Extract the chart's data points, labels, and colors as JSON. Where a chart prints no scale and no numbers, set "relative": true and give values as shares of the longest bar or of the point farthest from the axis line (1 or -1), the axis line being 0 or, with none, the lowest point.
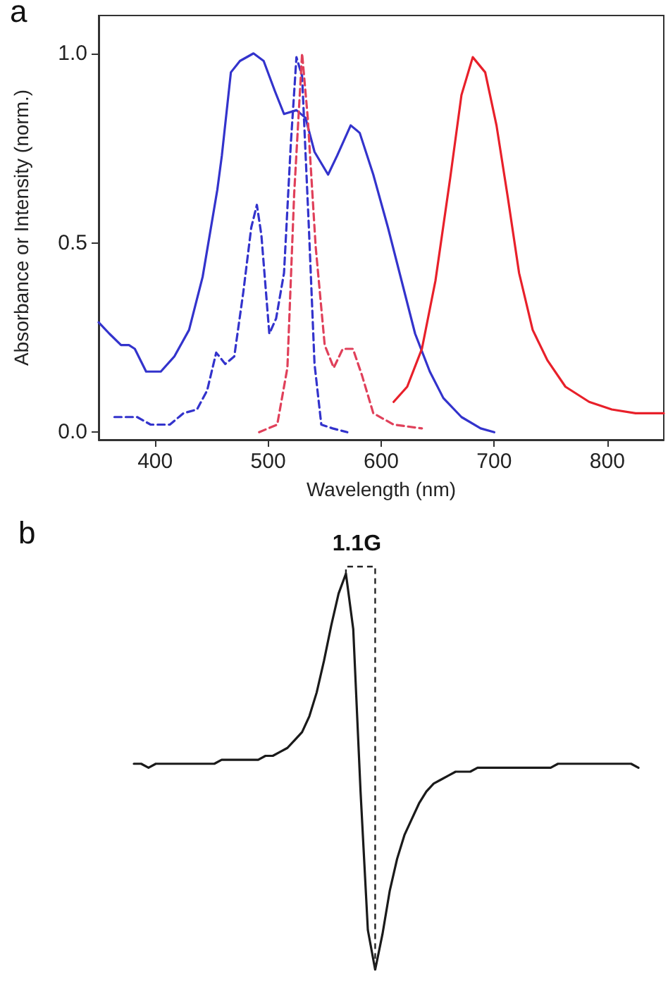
{
  "chart_data": [
    {
      "type": "line",
      "title": "a",
      "xlabel": "Wavelength (nm)",
      "ylabel": "Absorbance or Intensity (norm.)",
      "xlim": [
        350,
        850
      ],
      "xticks": [
        400,
        500,
        600,
        700,
        800
      ],
      "ylim": [
        -0.02,
        1.1
      ],
      "yticks": [
        {
          "value": 0,
          "label": "0.0"
        },
        {
          "value": 0.5,
          "label": "0.5"
        },
        {
          "value": 1,
          "label": "1.0"
        }
      ],
      "grid": false,
      "marker": "none",
      "series": [
        {
          "color": "#3333cc",
          "line_style": "solid",
          "x": [
            350,
            359.5,
            369.8,
            376.8,
            382,
            392,
            405,
            417,
            430,
            442,
            455,
            459,
            467,
            475,
            487,
            496,
            506,
            514,
            525,
            533,
            541,
            553,
            561,
            573,
            581,
            593,
            606,
            618,
            630,
            643,
            655,
            671,
            688,
            700
          ],
          "values": [
            0.29,
            0.26,
            0.23,
            0.23,
            0.22,
            0.16,
            0.16,
            0.2,
            0.27,
            0.41,
            0.64,
            0.73,
            0.95,
            0.98,
            1.0,
            0.98,
            0.9,
            0.84,
            0.85,
            0.83,
            0.74,
            0.68,
            0.73,
            0.81,
            0.79,
            0.68,
            0.54,
            0.4,
            0.26,
            0.16,
            0.09,
            0.04,
            0.01,
            0
          ]
        },
        {
          "color": "#3333cc",
          "line_style": "dashed",
          "x": [
            364,
            384,
            396,
            413,
            425,
            437,
            446,
            454,
            462,
            470,
            478,
            485,
            490,
            494,
            501,
            507,
            514,
            520,
            525,
            530,
            536,
            541,
            547,
            557,
            570
          ],
          "values": [
            0.04,
            0.04,
            0.02,
            0.02,
            0.05,
            0.06,
            0.11,
            0.21,
            0.18,
            0.2,
            0.37,
            0.54,
            0.6,
            0.52,
            0.26,
            0.3,
            0.42,
            0.76,
            0.99,
            0.94,
            0.54,
            0.18,
            0.02,
            0.01,
            0
          ]
        },
        {
          "color": "#e0405a",
          "line_style": "dashed",
          "x": [
            492,
            508,
            517,
            523,
            530,
            535,
            542,
            550,
            558,
            566,
            575,
            583,
            593,
            611,
            636
          ],
          "values": [
            0,
            0.02,
            0.17,
            0.63,
            1.0,
            0.83,
            0.49,
            0.23,
            0.17,
            0.22,
            0.22,
            0.15,
            0.05,
            0.02,
            0.01
          ]
        },
        {
          "color": "#e8202a",
          "line_style": "solid",
          "x": [
            611,
            623,
            636,
            648,
            661,
            671,
            681,
            692,
            702,
            712,
            722,
            734,
            747,
            763,
            784,
            804,
            825,
            850
          ],
          "values": [
            0.08,
            0.12,
            0.22,
            0.4,
            0.67,
            0.89,
            0.99,
            0.95,
            0.81,
            0.62,
            0.42,
            0.27,
            0.19,
            0.12,
            0.08,
            0.06,
            0.05,
            0.05
          ]
        }
      ]
    },
    {
      "type": "line",
      "title": "b",
      "relative": true,
      "marker": "none",
      "annotations": [
        "1.1G"
      ],
      "categories": [
        null,
        null,
        null,
        null,
        null,
        null,
        null,
        null,
        null,
        null,
        null,
        null,
        null,
        null,
        null,
        null,
        null,
        null,
        null,
        null,
        null,
        null,
        null,
        null,
        null,
        null,
        null,
        null,
        null,
        null,
        null,
        null,
        null,
        null,
        null,
        null,
        null,
        null,
        null,
        null,
        null,
        null,
        null,
        null,
        null,
        null,
        null,
        null,
        null,
        null,
        null,
        null,
        null,
        null,
        null,
        null,
        null,
        null,
        null,
        null,
        null,
        null,
        null,
        null,
        null,
        null,
        null,
        null,
        null,
        null
      ],
      "series": [
        {
          "color": "#1a1a1a",
          "line_style": "solid",
          "values": [
            0.52,
            0.52,
            0.51,
            0.52,
            0.52,
            0.52,
            0.52,
            0.52,
            0.52,
            0.52,
            0.52,
            0.52,
            0.53,
            0.53,
            0.53,
            0.53,
            0.53,
            0.53,
            0.54,
            0.54,
            0.55,
            0.56,
            0.58,
            0.6,
            0.64,
            0.7,
            0.78,
            0.87,
            0.95,
            1,
            0.86,
            0.45,
            0.1,
            0,
            0.09,
            0.2,
            0.28,
            0.34,
            0.38,
            0.42,
            0.45,
            0.47,
            0.48,
            0.49,
            0.5,
            0.5,
            0.5,
            0.51,
            0.51,
            0.51,
            0.51,
            0.51,
            0.51,
            0.51,
            0.51,
            0.51,
            0.51,
            0.51,
            0.52,
            0.52,
            0.52,
            0.52,
            0.52,
            0.52,
            0.52,
            0.52,
            0.52,
            0.52,
            0.52,
            0.51
          ]
        }
      ]
    }
  ]
}
